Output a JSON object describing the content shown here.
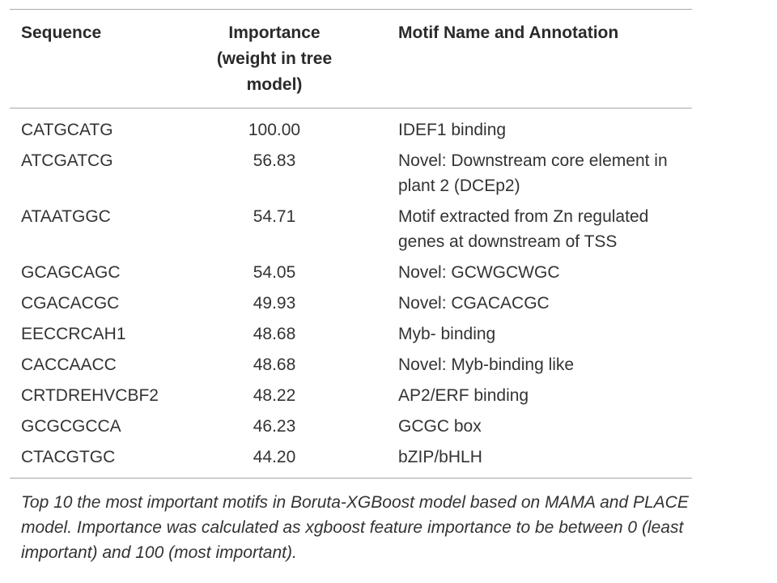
{
  "table": {
    "headers": {
      "sequence": "Sequence",
      "importance": "Importance (weight in tree model)",
      "motif": "Motif Name and Annotation"
    },
    "rows": [
      {
        "sequence": "CATGCATG",
        "importance": "100.00",
        "motif": "IDEF1 binding"
      },
      {
        "sequence": "ATCGATCG",
        "importance": "56.83",
        "motif": "Novel: Downstream core element in plant 2 (DCEp2)"
      },
      {
        "sequence": "ATAATGGC",
        "importance": "54.71",
        "motif": "Motif extracted from Zn regulated genes at downstream of TSS"
      },
      {
        "sequence": "GCAGCAGC",
        "importance": "54.05",
        "motif": "Novel: GCWGCWGC"
      },
      {
        "sequence": "CGACACGC",
        "importance": "49.93",
        "motif": "Novel: CGACACGC"
      },
      {
        "sequence": "EECCRCAH1",
        "importance": "48.68",
        "motif": "Myb- binding"
      },
      {
        "sequence": "CACCAACC",
        "importance": "48.68",
        "motif": "Novel: Myb-binding like"
      },
      {
        "sequence": "CRTDREHVCBF2",
        "importance": "48.22",
        "motif": "AP2/ERF binding"
      },
      {
        "sequence": "GCGCGCCA",
        "importance": "46.23",
        "motif": "GCGC box"
      },
      {
        "sequence": "CTACGTGC",
        "importance": "44.20",
        "motif": "bZIP/bHLH"
      }
    ]
  },
  "caption": "Top 10 the most important motifs in Boruta-XGBoost model based on MAMA and PLACE model. Importance was calculated as xgboost feature importance to be between 0 (least important) and 100 (most important)."
}
